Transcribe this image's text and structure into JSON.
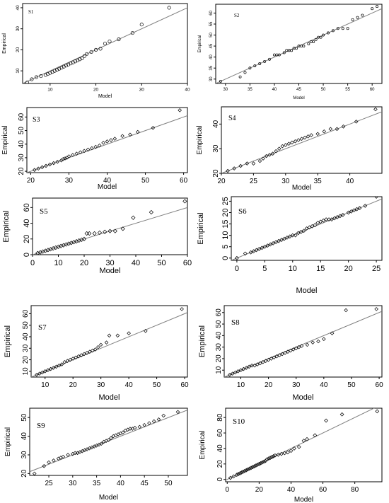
{
  "colors": {
    "points": "#000000",
    "fit_line": "#7f7f7f",
    "fit_line_s1": "#4f8f8f"
  },
  "chart_data": [
    {
      "type": "scatter",
      "title": "S1",
      "xlabel": "Model",
      "ylabel": "Empirical",
      "xlim": [
        4,
        40
      ],
      "ylim": [
        4,
        42
      ],
      "xticks": [
        10,
        20,
        30,
        40
      ],
      "yticks": [
        10,
        20,
        30,
        40
      ],
      "x": [
        5,
        6,
        7,
        8,
        9,
        9.5,
        10,
        10.5,
        11,
        11.5,
        12,
        12.5,
        13,
        13.5,
        14,
        14.5,
        15,
        15.5,
        16,
        16.5,
        17,
        17.5,
        18,
        19,
        20,
        21,
        22,
        23,
        25,
        28,
        30,
        36
      ],
      "y": [
        4.5,
        6,
        7,
        7.5,
        8,
        8.5,
        9,
        9.5,
        10,
        10.5,
        11,
        11.5,
        12,
        12.5,
        13,
        13.5,
        14,
        14.5,
        15,
        15.5,
        16,
        17,
        18,
        19,
        20,
        20.5,
        23,
        24,
        25,
        28,
        32,
        40
      ],
      "fit": [
        [
          4,
          4
        ],
        [
          40,
          40
        ]
      ]
    },
    {
      "type": "scatter",
      "title": "S2",
      "xlabel": "Model",
      "ylabel": "Empirical",
      "xlim": [
        28,
        62
      ],
      "ylim": [
        28,
        64
      ],
      "xticks": [
        30,
        35,
        40,
        45,
        50,
        55,
        60
      ],
      "yticks": [
        30,
        35,
        40,
        45,
        50,
        55,
        60
      ],
      "x": [
        29,
        33,
        34,
        35,
        36,
        37,
        38,
        39,
        40,
        40.5,
        41,
        42,
        42.5,
        43,
        43.5,
        44,
        44.5,
        45,
        45.5,
        46,
        47,
        47.5,
        48,
        48.5,
        49,
        49.5,
        50,
        51,
        52,
        53,
        54,
        55,
        56,
        57,
        58,
        60,
        61
      ],
      "y": [
        29,
        31,
        33,
        35,
        36,
        37,
        38,
        39,
        41,
        41,
        41,
        42,
        43,
        43,
        43,
        44,
        44,
        45,
        45,
        45,
        46,
        47,
        47,
        48,
        49,
        49,
        50,
        51,
        52,
        53,
        53,
        53,
        57,
        58,
        59,
        62,
        63
      ],
      "fit": [
        [
          28,
          28
        ],
        [
          62,
          62
        ]
      ]
    },
    {
      "type": "scatter",
      "title": "S3",
      "xlabel": "Model",
      "ylabel": "Empirical",
      "xlim": [
        19,
        61
      ],
      "ylim": [
        19,
        67
      ],
      "xticks": [
        20,
        30,
        40,
        50,
        60
      ],
      "yticks": [
        20,
        30,
        40,
        50,
        60
      ],
      "x": [
        21,
        22,
        23,
        24,
        25,
        26,
        27,
        28,
        28.5,
        29,
        29.5,
        30,
        31,
        32,
        33,
        34,
        35,
        36,
        37,
        38,
        39,
        40,
        41,
        42,
        44,
        46,
        48,
        52,
        59
      ],
      "y": [
        21,
        22,
        23,
        24,
        25,
        26,
        27,
        28,
        29,
        29.5,
        30,
        31,
        32,
        33,
        34,
        35,
        36,
        37,
        38,
        39,
        41,
        42,
        43,
        44,
        46,
        47,
        49,
        52,
        65
      ],
      "fit": [
        [
          19,
          19
        ],
        [
          61,
          61
        ]
      ]
    },
    {
      "type": "scatter",
      "title": "S4",
      "xlabel": "Model",
      "ylabel": "Empirical",
      "xlim": [
        20,
        45
      ],
      "ylim": [
        20,
        47
      ],
      "xticks": [
        20,
        25,
        30,
        35,
        40
      ],
      "yticks": [
        20,
        30,
        40
      ],
      "x": [
        21,
        22,
        23,
        24,
        25,
        26,
        26.5,
        27,
        27.5,
        28,
        28.5,
        29,
        29.5,
        30,
        30.5,
        31,
        31.5,
        32,
        32.5,
        33,
        33.5,
        34,
        35,
        36,
        37,
        38,
        39,
        41,
        44
      ],
      "y": [
        21,
        22,
        23,
        24,
        24,
        25,
        26,
        27,
        27.5,
        28,
        29,
        30,
        31,
        31.5,
        32,
        32.5,
        33,
        33.5,
        34,
        34.5,
        35,
        35.5,
        36,
        37,
        38,
        38,
        39,
        41,
        46
      ],
      "fit": [
        [
          20,
          20
        ],
        [
          45,
          45
        ]
      ]
    },
    {
      "type": "scatter",
      "title": "S5",
      "xlabel": "Model",
      "ylabel": "Empirical",
      "xlim": [
        0,
        60
      ],
      "ylim": [
        0,
        72
      ],
      "xticks": [
        0,
        10,
        20,
        30,
        40,
        50,
        60
      ],
      "yticks": [
        0,
        20,
        40,
        60
      ],
      "x": [
        2,
        3,
        4,
        5,
        6,
        7,
        8,
        9,
        10,
        11,
        12,
        13,
        14,
        15,
        16,
        17,
        18,
        19,
        20,
        21,
        22,
        24,
        26,
        28,
        30,
        32,
        35,
        39,
        46,
        59
      ],
      "y": [
        2,
        3,
        4,
        5,
        6,
        7,
        8,
        9,
        10,
        11,
        12,
        13,
        14,
        15,
        16,
        17,
        18,
        19,
        20,
        27,
        27,
        27,
        28,
        29,
        30,
        30,
        33,
        47,
        54,
        68
      ],
      "fit": [
        [
          0,
          0
        ],
        [
          60,
          60
        ]
      ]
    },
    {
      "type": "scatter",
      "title": "S6",
      "xlabel": "Model",
      "ylabel": "Empirical",
      "xlim": [
        -1,
        26
      ],
      "ylim": [
        -1,
        27
      ],
      "xticks": [
        0,
        5,
        10,
        15,
        20,
        25
      ],
      "yticks": [
        0,
        5,
        10,
        15,
        20,
        25
      ],
      "x": [
        0,
        1.5,
        2.5,
        3,
        3.5,
        4,
        4.5,
        5,
        5.5,
        6,
        6.5,
        7,
        7.5,
        8,
        8.5,
        9,
        9.5,
        10,
        10.5,
        11,
        11.5,
        12,
        12.5,
        13,
        13.5,
        14,
        14.5,
        15,
        15.5,
        16,
        16.5,
        17,
        17.5,
        18,
        18.5,
        19,
        20,
        20.5,
        21,
        21.5,
        22,
        23,
        25
      ],
      "y": [
        0,
        2,
        2.5,
        3,
        3.5,
        4,
        4.5,
        5,
        5.5,
        6,
        6.5,
        7,
        7.5,
        8,
        8.5,
        9,
        9.5,
        10,
        10,
        11,
        11.5,
        12,
        13,
        13.5,
        14,
        14.5,
        15.5,
        16,
        16.5,
        17,
        17,
        17,
        17.5,
        18,
        18.5,
        19,
        20,
        20.5,
        21,
        21.5,
        22,
        23,
        27
      ],
      "fit": [
        [
          -1,
          -1
        ],
        [
          26,
          26
        ]
      ]
    },
    {
      "type": "scatter",
      "title": "S7",
      "xlabel": "Model",
      "ylabel": "Empirical",
      "xlim": [
        5,
        61
      ],
      "ylim": [
        5,
        67
      ],
      "xticks": [
        10,
        20,
        30,
        40,
        50,
        60
      ],
      "yticks": [
        10,
        20,
        30,
        40,
        50,
        60
      ],
      "x": [
        7,
        8,
        9,
        10,
        11,
        12,
        13,
        14,
        15,
        16,
        17,
        18,
        19,
        20,
        21,
        22,
        23,
        24,
        25,
        26,
        27,
        28,
        29,
        30,
        32,
        33,
        36,
        40,
        46,
        59
      ],
      "y": [
        7,
        8,
        9,
        10,
        11,
        12,
        13,
        14,
        15,
        16,
        18,
        19,
        20,
        21,
        22,
        23,
        24,
        25,
        26,
        27,
        28,
        29,
        31,
        33,
        35,
        41,
        41,
        43,
        45,
        64
      ],
      "fit": [
        [
          5,
          5
        ],
        [
          61,
          61
        ]
      ]
    },
    {
      "type": "scatter",
      "title": "S8",
      "xlabel": "Model",
      "ylabel": "Empirical",
      "xlim": [
        4,
        61
      ],
      "ylim": [
        4,
        66
      ],
      "xticks": [
        10,
        20,
        30,
        40,
        50,
        60
      ],
      "yticks": [
        10,
        20,
        30,
        40,
        50,
        60
      ],
      "x": [
        6,
        7,
        8,
        9,
        10,
        11,
        12,
        13,
        14,
        15,
        16,
        17,
        18,
        19,
        20,
        21,
        22,
        23,
        24,
        25,
        26,
        27,
        28,
        29,
        30,
        31,
        32,
        34,
        36,
        38,
        40,
        43,
        48,
        59
      ],
      "y": [
        6,
        7,
        8,
        9,
        10,
        11,
        12,
        13,
        14,
        14,
        15,
        16,
        17,
        18,
        19,
        20,
        21,
        22,
        23,
        24,
        25,
        26,
        27,
        28,
        29,
        30,
        31,
        32,
        34,
        35,
        37,
        42,
        62,
        63
      ],
      "fit": [
        [
          4,
          4
        ],
        [
          61,
          61
        ]
      ]
    },
    {
      "type": "scatter",
      "title": "S9",
      "xlabel": "Model",
      "ylabel": "Empirical",
      "xlim": [
        21,
        54
      ],
      "ylim": [
        19,
        55
      ],
      "xticks": [
        25,
        30,
        35,
        40,
        45,
        50
      ],
      "yticks": [
        20,
        30,
        40,
        50
      ],
      "x": [
        22,
        24,
        25,
        26,
        27,
        27.5,
        28,
        29,
        30,
        30.5,
        31,
        31.5,
        32,
        32.5,
        33,
        33.5,
        34,
        34.5,
        35,
        35.5,
        36,
        36.5,
        37,
        37.5,
        38,
        38.5,
        39,
        39.5,
        40,
        40.5,
        41,
        41.5,
        42,
        42.5,
        43,
        44,
        45,
        46,
        47,
        48,
        49,
        52
      ],
      "y": [
        20,
        24,
        26,
        27,
        28,
        28.5,
        29,
        30,
        30.5,
        31,
        31,
        31.5,
        32,
        32.5,
        33,
        33.5,
        34,
        34.5,
        35,
        35.5,
        36,
        37,
        37.5,
        38,
        39,
        40,
        40.5,
        41,
        41.5,
        42,
        43,
        43.5,
        44,
        44,
        44.5,
        45,
        46,
        47,
        48,
        49,
        51,
        53
      ],
      "fit": [
        [
          21,
          21
        ],
        [
          54,
          54
        ]
      ]
    },
    {
      "type": "scatter",
      "title": "S10",
      "xlabel": "Model",
      "ylabel": "Empirical",
      "xlim": [
        -1,
        97
      ],
      "ylim": [
        -3,
        92
      ],
      "xticks": [
        0,
        20,
        40,
        60,
        80
      ],
      "yticks": [
        0,
        20,
        40,
        60,
        80
      ],
      "x": [
        2,
        4,
        6,
        7,
        8,
        9,
        10,
        11,
        12,
        13,
        14,
        15,
        16,
        17,
        18,
        19,
        20,
        21,
        22,
        23,
        24,
        25,
        26,
        27,
        28,
        29,
        30,
        32,
        34,
        36,
        38,
        40,
        42,
        45,
        48,
        50,
        55,
        62,
        72,
        94
      ],
      "y": [
        2,
        4,
        6,
        7,
        8,
        9,
        10,
        11,
        12,
        13,
        14,
        15,
        16,
        17,
        18,
        19,
        20,
        21,
        22,
        23,
        24,
        26,
        27,
        28,
        29,
        30,
        31,
        32,
        33,
        34,
        35,
        37,
        40,
        42,
        50,
        52,
        57,
        76,
        84,
        88
      ],
      "fit": [
        [
          -1,
          -1
        ],
        [
          97,
          97
        ]
      ]
    }
  ]
}
